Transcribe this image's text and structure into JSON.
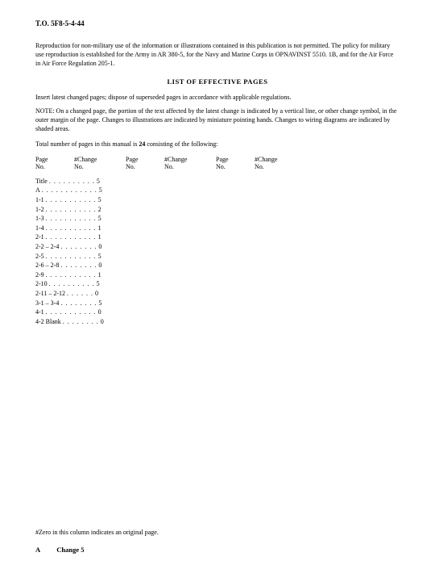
{
  "header": {
    "doc_id": "T.O. 5F8-5-4-44"
  },
  "repro": {
    "text": "Reproduction for non-military use of the information or illustrations contained in this publication is not permitted. The policy for military use reproduction is established for the Army in AR 380-5, for the Navy and Marine Corps in OPNAVINST 5510. 1B, and for the Air Force in Air Force Regulation 205-1."
  },
  "list_title": "LIST OF EFFECTIVE PAGES",
  "instruction": "Insert latest changed pages; dispose of superseded pages in accordance with applicable regulations.",
  "note": "NOTE:  On a changed page, the portion of the text affected by the latest change is indicated by a vertical line, or other change symbol, in the outer margin of the page. Changes to illustrations are indicated by miniature pointing hands. Changes to wiring diagrams are indicated by shaded areas.",
  "total": {
    "prefix": "Total number of pages in this manual is ",
    "count": "24",
    "suffix": "  consisting of the following:"
  },
  "headers": {
    "page": "Page",
    "page_sub": "No.",
    "change": "#Change",
    "change_sub": "No."
  },
  "rows": [
    {
      "page": "Title",
      "dots": ". . . . . . . . . .",
      "chg": "5"
    },
    {
      "page": "A",
      "dots": ". . . . . . . . . . . .",
      "chg": "5"
    },
    {
      "page": "1-1",
      "dots": ". . . . . . . . . . .",
      "chg": "5"
    },
    {
      "page": "1-2",
      "dots": ". . . . . . . . . . .",
      "chg": "2"
    },
    {
      "page": "1-3",
      "dots": ". . . . . . . . . . .",
      "chg": "5"
    },
    {
      "page": "1-4",
      "dots": ". . . . . . . . . . .",
      "chg": "1"
    },
    {
      "page": "2-1",
      "dots": ". . . . . . . . . . .",
      "chg": "1"
    },
    {
      "page": "2-2 – 2-4",
      "dots": ". . . . . . . .",
      "chg": "0"
    },
    {
      "page": "2-5",
      "dots": ". . . . . . . . . . .",
      "chg": "5"
    },
    {
      "page": "2-6 – 2-8",
      "dots": ". . . . . . . .",
      "chg": "0"
    },
    {
      "page": "2-9",
      "dots": ". . . . . . . . . . .",
      "chg": "1"
    },
    {
      "page": "2-10",
      "dots": ". . . . . . . . . .",
      "chg": "5"
    },
    {
      "page": "2-11 – 2-12",
      "dots": ". . . . . .",
      "chg": "0"
    },
    {
      "page": "3-1 – 3-4",
      "dots": ". . . . . . . .",
      "chg": "5"
    },
    {
      "page": "4-1",
      "dots": ". . . . . . . . . . .",
      "chg": "0"
    },
    {
      "page": "4-2 Blank",
      "dots": ". . . . . . . .",
      "chg": "0"
    }
  ],
  "zero_note": "#Zero in this column indicates an original page.",
  "footer": {
    "a": "A",
    "change": "Change 5"
  }
}
